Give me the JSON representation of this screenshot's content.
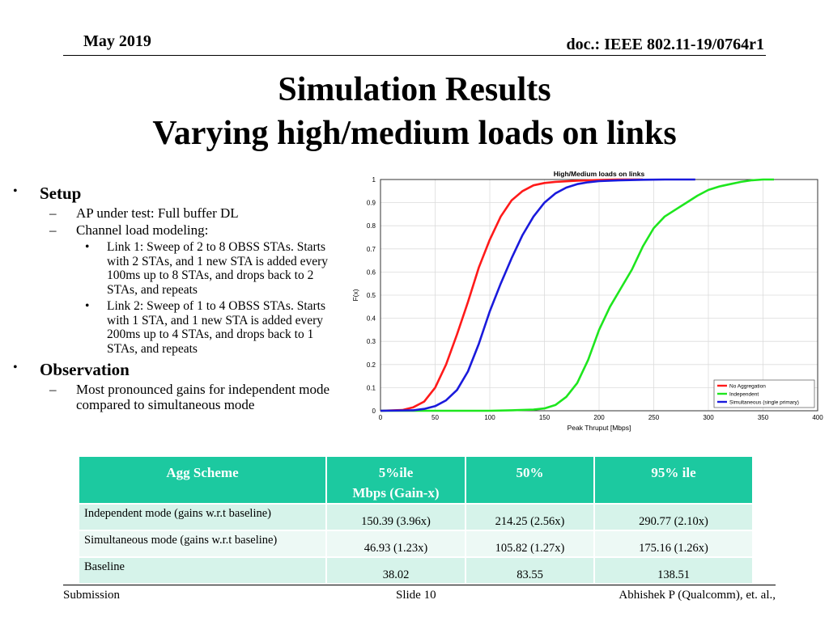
{
  "header": {
    "date": "May 2019",
    "doc_id": "doc.: IEEE 802.11-19/0764r1"
  },
  "title": {
    "line1": "Simulation Results",
    "line2": "Varying high/medium loads on links"
  },
  "bullets": {
    "setup": {
      "heading": "Setup",
      "items": [
        "AP under test: Full buffer DL",
        "Channel load modeling:"
      ],
      "sub_items": [
        "Link 1: Sweep of 2 to 8 OBSS STAs. Starts with 2 STAs, and 1 new STA is added every 100ms up to 8 STAs, and drops back to 2 STAs, and repeats",
        "Link 2: Sweep of 1 to 4 OBSS STAs. Starts with 1 STA, and 1 new STA is added every 200ms up to 4 STAs, and drops back to 1 STAs, and repeats"
      ]
    },
    "observation": {
      "heading": "Observation",
      "items": [
        "Most pronounced gains for independent mode compared to simultaneous mode"
      ]
    }
  },
  "chart_data": {
    "type": "line",
    "title": "High/Medium loads on links",
    "xlabel": "Peak Thruput [Mbps]",
    "ylabel": "F(x)",
    "xlim": [
      0,
      400
    ],
    "ylim": [
      0,
      1
    ],
    "xticks": [
      "0",
      "50",
      "100",
      "150",
      "200",
      "250",
      "300",
      "350",
      "400"
    ],
    "yticks": [
      "0",
      "0.1",
      "0.2",
      "0.3",
      "0.4",
      "0.5",
      "0.6",
      "0.7",
      "0.8",
      "0.9",
      "1"
    ],
    "grid": true,
    "legend_position": "bottom-right",
    "series": [
      {
        "name": "No Aggregation",
        "color": "#ff1a1a",
        "x": [
          0,
          20,
          30,
          40,
          50,
          60,
          70,
          80,
          90,
          100,
          110,
          120,
          130,
          140,
          150,
          160,
          180,
          200,
          220,
          240
        ],
        "y": [
          0,
          0.003,
          0.015,
          0.04,
          0.1,
          0.2,
          0.33,
          0.47,
          0.62,
          0.74,
          0.84,
          0.91,
          0.95,
          0.975,
          0.985,
          0.99,
          0.995,
          0.998,
          1.0,
          1.0
        ]
      },
      {
        "name": "Independent",
        "color": "#1ee61e",
        "x": [
          0,
          100,
          120,
          140,
          150,
          160,
          170,
          180,
          190,
          200,
          210,
          220,
          230,
          240,
          250,
          260,
          270,
          280,
          290,
          300,
          310,
          320,
          330,
          340,
          350,
          360
        ],
        "y": [
          0,
          0,
          0.002,
          0.005,
          0.01,
          0.025,
          0.06,
          0.12,
          0.22,
          0.35,
          0.45,
          0.53,
          0.61,
          0.71,
          0.79,
          0.84,
          0.87,
          0.9,
          0.93,
          0.955,
          0.97,
          0.98,
          0.99,
          0.997,
          1.0,
          1.0
        ]
      },
      {
        "name": "Simultaneous (single primary)",
        "color": "#1a1adc",
        "x": [
          0,
          30,
          40,
          50,
          60,
          70,
          80,
          90,
          100,
          110,
          120,
          130,
          140,
          150,
          160,
          170,
          180,
          190,
          200,
          220,
          240,
          260,
          288
        ],
        "y": [
          0,
          0.002,
          0.008,
          0.02,
          0.045,
          0.09,
          0.17,
          0.29,
          0.43,
          0.55,
          0.66,
          0.76,
          0.84,
          0.9,
          0.94,
          0.965,
          0.98,
          0.988,
          0.993,
          0.997,
          0.999,
          1.0,
          1.0
        ]
      }
    ]
  },
  "table": {
    "headers": [
      "Agg Scheme",
      "5%ile\nMbps (Gain-x)",
      "50%",
      "95% ile"
    ],
    "rows": [
      [
        "Independent mode (gains w.r.t baseline)",
        "150.39 (3.96x)",
        "214.25 (2.56x)",
        "290.77 (2.10x)"
      ],
      [
        "Simultaneous mode (gains w.r.t baseline)",
        "46.93 (1.23x)",
        "105.82 (1.27x)",
        "175.16 (1.26x)"
      ],
      [
        "Baseline",
        "38.02",
        "83.55",
        "138.51"
      ]
    ]
  },
  "footer": {
    "left": "Submission",
    "center": "Slide 10",
    "right": "Abhishek P (Qualcomm), et. al.,"
  }
}
